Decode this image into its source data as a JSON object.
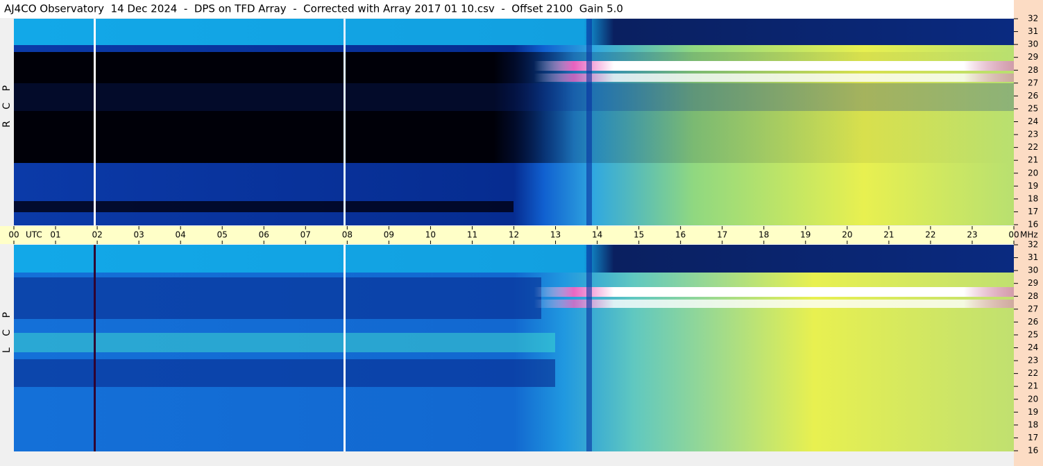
{
  "chart_data": {
    "type": "spectrogram",
    "title": "AJ4CO Observatory  14 Dec 2024  -  DPS on TFD Array  -  Corrected with Array 2017 01 10.csv  -  Offset 2100  Gain 5.0",
    "panels": [
      "R C P",
      "L C P"
    ],
    "x_unit": "UTC",
    "y_unit": "MHz",
    "xlim": [
      0,
      24
    ],
    "xticks": [
      {
        "value": 0,
        "label": "00"
      },
      {
        "value": 1,
        "label": "01"
      },
      {
        "value": 2,
        "label": "02"
      },
      {
        "value": 3,
        "label": "03"
      },
      {
        "value": 4,
        "label": "04"
      },
      {
        "value": 5,
        "label": "05"
      },
      {
        "value": 6,
        "label": "06"
      },
      {
        "value": 7,
        "label": "07"
      },
      {
        "value": 8,
        "label": "08"
      },
      {
        "value": 9,
        "label": "09"
      },
      {
        "value": 10,
        "label": "10"
      },
      {
        "value": 11,
        "label": "11"
      },
      {
        "value": 12,
        "label": "12"
      },
      {
        "value": 13,
        "label": "13"
      },
      {
        "value": 14,
        "label": "14"
      },
      {
        "value": 15,
        "label": "15"
      },
      {
        "value": 16,
        "label": "16"
      },
      {
        "value": 17,
        "label": "17"
      },
      {
        "value": 18,
        "label": "18"
      },
      {
        "value": 19,
        "label": "19"
      },
      {
        "value": 20,
        "label": "20"
      },
      {
        "value": 21,
        "label": "21"
      },
      {
        "value": 22,
        "label": "22"
      },
      {
        "value": 23,
        "label": "23"
      },
      {
        "value": 24,
        "label": "00"
      }
    ],
    "ylim": [
      16,
      32
    ],
    "yticks": [
      16,
      17,
      18,
      19,
      20,
      21,
      22,
      23,
      24,
      25,
      26,
      27,
      28,
      29,
      30,
      31,
      32
    ]
  }
}
